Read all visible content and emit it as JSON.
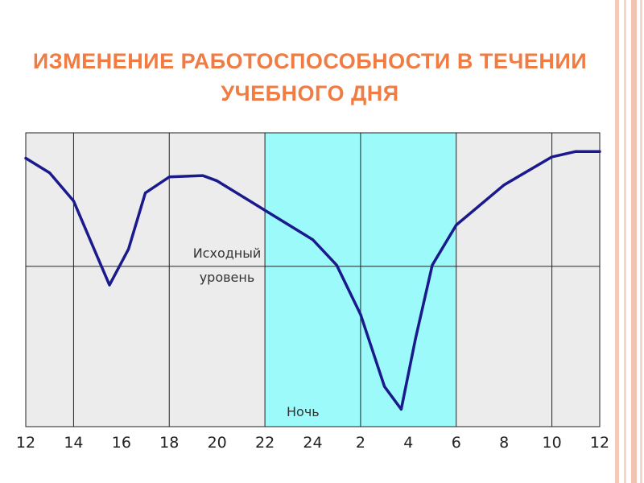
{
  "chart_data": {
    "type": "line",
    "title": "ИЗМЕНЕНИЕ РАБОТОСПОСОБНОСТИ В ТЕЧЕНИИ УЧЕБНОГО ДНЯ",
    "x": [
      12,
      13,
      14,
      15,
      15.5,
      16.3,
      17,
      18,
      19.4,
      20,
      22,
      24,
      25,
      26,
      27,
      27.7,
      28.3,
      29,
      30,
      32,
      34,
      35,
      36
    ],
    "series": [
      {
        "color": "#1a1a8c",
        "values": [
          81,
          70,
          49,
          7,
          -14,
          13,
          55,
          67,
          68,
          64,
          42,
          20,
          1,
          -36,
          -90,
          -107,
          -54,
          1,
          31,
          61,
          82,
          86,
          86
        ]
      }
    ],
    "xlim": [
      12,
      36
    ],
    "xticks": [
      12,
      14,
      16,
      18,
      20,
      22,
      24,
      {
        "value": 26,
        "label": "2"
      },
      {
        "value": 28,
        "label": "4"
      },
      {
        "value": 30,
        "label": "6"
      },
      {
        "value": 32,
        "label": "8"
      },
      {
        "value": 34,
        "label": "10"
      },
      {
        "value": 36,
        "label": "12"
      }
    ],
    "ylim": [
      -120,
      100
    ],
    "reference_line": {
      "value": 0,
      "label": "Исходный уровень"
    },
    "band": {
      "from": 22,
      "to": 30,
      "label": "Ночь",
      "color": "#9dfafa"
    },
    "grid": true
  }
}
